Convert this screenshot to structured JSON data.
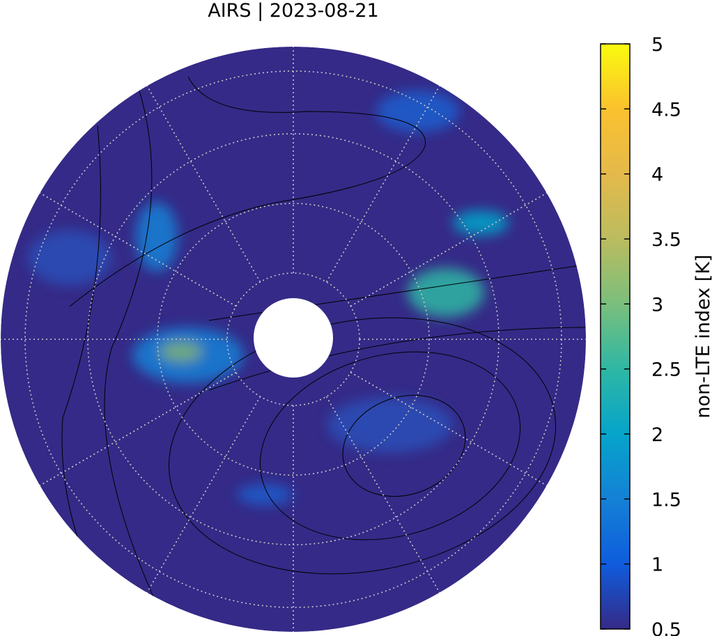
{
  "chart_data": {
    "type": "polar-map",
    "title": "AIRS | 2023-08-21",
    "colorbar": {
      "label": "non-LTE index [K]",
      "clim": [
        0.5,
        5
      ],
      "ticks": [
        0.5,
        1,
        1.5,
        2,
        2.5,
        3,
        3.5,
        4,
        4.5,
        5
      ],
      "colors": [
        "#352a87",
        "#0f5cdd",
        "#1481d6",
        "#06a4ca",
        "#2eb7a4",
        "#7abf7c",
        "#bbbc5f",
        "#e4b94b",
        "#fbc12e",
        "#f9fb0e"
      ]
    }
  }
}
